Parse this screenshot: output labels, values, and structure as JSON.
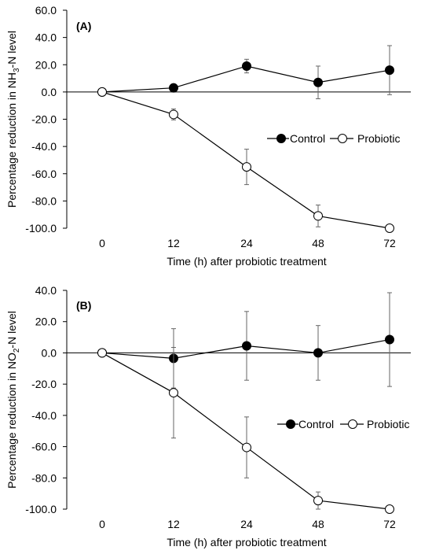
{
  "chart_data": [
    {
      "type": "line",
      "panel_label": "(A)",
      "x": [
        "0",
        "12",
        "24",
        "48",
        "72"
      ],
      "xlabel": "Time (h) after probiotic treatment",
      "ylabel_pre": "Percentage reduction in NH",
      "ylabel_sub": "3",
      "ylabel_post": "-N level",
      "ylim": [
        -100,
        60
      ],
      "yticks": [
        "60.0",
        "40.0",
        "20.0",
        "0.0",
        "-20.0",
        "-40.0",
        "-60.0",
        "-80.0",
        "-100.0"
      ],
      "ytick_values": [
        60,
        40,
        20,
        0,
        -20,
        -40,
        -60,
        -80,
        -100
      ],
      "grid": false,
      "legend": "right, below zero line",
      "series": [
        {
          "name": "Control",
          "marker": "filled-circle",
          "color": "#000000",
          "values": [
            0,
            3,
            19,
            7,
            16
          ],
          "errors": [
            0,
            0,
            5,
            12,
            18
          ]
        },
        {
          "name": "Probiotic",
          "marker": "open-circle",
          "color": "#000000",
          "values": [
            0,
            -16.5,
            -55,
            -91,
            -100
          ],
          "errors": [
            0,
            4,
            13,
            8,
            0
          ]
        }
      ]
    },
    {
      "type": "line",
      "panel_label": "(B)",
      "x": [
        "0",
        "12",
        "24",
        "48",
        "72"
      ],
      "xlabel": "Time (h) after probiotic treatment",
      "ylabel_pre": "Percentage reduction in NO",
      "ylabel_sub": "2",
      "ylabel_post": "-N level",
      "ylim": [
        -100,
        40
      ],
      "yticks": [
        "40.0",
        "20.0",
        "0.0",
        "-20.0",
        "-40.0",
        "-60.0",
        "-80.0",
        "-100.0"
      ],
      "ytick_values": [
        40,
        20,
        0,
        -20,
        -40,
        -60,
        -80,
        -100
      ],
      "grid": false,
      "legend": "right, lower middle",
      "series": [
        {
          "name": "Control",
          "marker": "filled-circle",
          "color": "#000000",
          "values": [
            0,
            -3.5,
            4.5,
            0,
            8.5
          ],
          "errors": [
            0,
            19,
            22,
            17.5,
            30
          ]
        },
        {
          "name": "Probiotic",
          "marker": "open-circle",
          "color": "#000000",
          "values": [
            0,
            -25.5,
            -60.5,
            -94.5,
            -100
          ],
          "errors": [
            0,
            29,
            19.5,
            5.5,
            0
          ]
        }
      ]
    }
  ]
}
